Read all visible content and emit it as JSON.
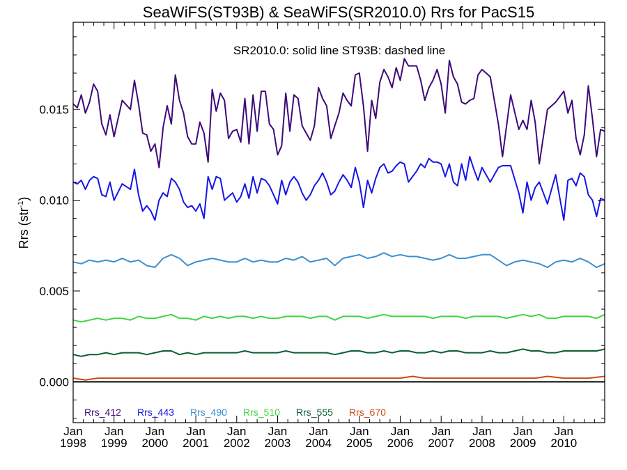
{
  "chart_data": {
    "type": "line",
    "title": "SeaWiFS(ST93B) & SeaWiFS(SR2010.0)  Rrs for PacS15",
    "annotation": "SR2010.0: solid line   ST93B: dashed line",
    "ylabel_main": "Rrs (str",
    "ylabel_sup": "-1",
    "ylabel_tail": ")",
    "xlim": [
      1998.0,
      2011.0
    ],
    "ylim": [
      -0.00225,
      0.0198
    ],
    "yticks": [
      {
        "value": 0.0,
        "label": "0.000"
      },
      {
        "value": 0.005,
        "label": "0.005"
      },
      {
        "value": 0.01,
        "label": "0.010"
      },
      {
        "value": 0.015,
        "label": "0.015"
      }
    ],
    "xticks": [
      {
        "value": 1998.0,
        "month": "Jan",
        "year": "1998"
      },
      {
        "value": 1999.0,
        "month": "Jan",
        "year": "1999"
      },
      {
        "value": 2000.0,
        "month": "Jan",
        "year": "2000"
      },
      {
        "value": 2001.0,
        "month": "Jan",
        "year": "2001"
      },
      {
        "value": 2002.0,
        "month": "Jan",
        "year": "2002"
      },
      {
        "value": 2003.0,
        "month": "Jan",
        "year": "2003"
      },
      {
        "value": 2004.0,
        "month": "Jan",
        "year": "2004"
      },
      {
        "value": 2005.0,
        "month": "Jan",
        "year": "2005"
      },
      {
        "value": 2006.0,
        "month": "Jan",
        "year": "2006"
      },
      {
        "value": 2007.0,
        "month": "Jan",
        "year": "2007"
      },
      {
        "value": 2008.0,
        "month": "Jan",
        "year": "2008"
      },
      {
        "value": 2009.0,
        "month": "Jan",
        "year": "2009"
      },
      {
        "value": 2010.0,
        "month": "Jan",
        "year": "2010"
      }
    ],
    "zero_line": 0.0,
    "legend": "bottom",
    "series": [
      {
        "name": "Rrs_412",
        "color": "#3d0a7a",
        "x": [
          1998.0,
          1998.1,
          1998.2,
          1998.3,
          1998.4,
          1998.5,
          1998.6,
          1998.7,
          1998.8,
          1998.9,
          1999.0,
          1999.2,
          1999.4,
          1999.5,
          1999.6,
          1999.7,
          1999.8,
          1999.9,
          2000.0,
          2000.1,
          2000.2,
          2000.3,
          2000.4,
          2000.5,
          2000.6,
          2000.7,
          2000.8,
          2000.9,
          2001.0,
          2001.1,
          2001.2,
          2001.3,
          2001.4,
          2001.5,
          2001.6,
          2001.7,
          2001.8,
          2001.9,
          2002.0,
          2002.1,
          2002.2,
          2002.3,
          2002.4,
          2002.5,
          2002.6,
          2002.7,
          2002.8,
          2002.9,
          2003.0,
          2003.1,
          2003.2,
          2003.3,
          2003.4,
          2003.5,
          2003.6,
          2003.7,
          2003.8,
          2003.9,
          2004.0,
          2004.1,
          2004.2,
          2004.3,
          2004.4,
          2004.5,
          2004.6,
          2004.7,
          2004.8,
          2004.9,
          2005.0,
          2005.1,
          2005.2,
          2005.3,
          2005.4,
          2005.5,
          2005.6,
          2005.7,
          2005.8,
          2005.9,
          2006.0,
          2006.1,
          2006.2,
          2006.4,
          2006.5,
          2006.6,
          2006.7,
          2006.8,
          2006.9,
          2007.0,
          2007.1,
          2007.2,
          2007.3,
          2007.4,
          2007.5,
          2007.6,
          2007.7,
          2007.8,
          2007.9,
          2008.0,
          2008.2,
          2008.4,
          2008.5,
          2008.7,
          2008.9,
          2009.0,
          2009.1,
          2009.2,
          2009.3,
          2009.4,
          2009.6,
          2009.8,
          2010.0,
          2010.1,
          2010.2,
          2010.3,
          2010.4,
          2010.5,
          2010.6,
          2010.7,
          2010.8,
          2010.9,
          2011.0
        ],
        "y": [
          0.0153,
          0.0151,
          0.0158,
          0.0148,
          0.0154,
          0.0164,
          0.016,
          0.0142,
          0.0136,
          0.0147,
          0.0135,
          0.0155,
          0.015,
          0.0166,
          0.0153,
          0.0137,
          0.0136,
          0.0127,
          0.0131,
          0.0118,
          0.014,
          0.0152,
          0.0142,
          0.0169,
          0.0155,
          0.0148,
          0.0135,
          0.0131,
          0.0131,
          0.0143,
          0.0137,
          0.0121,
          0.0161,
          0.0149,
          0.0159,
          0.0155,
          0.0134,
          0.0138,
          0.0139,
          0.0132,
          0.0156,
          0.0131,
          0.0158,
          0.0138,
          0.016,
          0.016,
          0.0142,
          0.0139,
          0.0125,
          0.013,
          0.0159,
          0.0138,
          0.0158,
          0.0156,
          0.0141,
          0.0137,
          0.0133,
          0.0141,
          0.0162,
          0.0156,
          0.0152,
          0.0134,
          0.0141,
          0.0148,
          0.0159,
          0.0155,
          0.0152,
          0.0169,
          0.017,
          0.0152,
          0.0127,
          0.0155,
          0.0145,
          0.0165,
          0.0172,
          0.0168,
          0.0162,
          0.0173,
          0.0166,
          0.0178,
          0.0174,
          0.0174,
          0.0166,
          0.0155,
          0.0162,
          0.0166,
          0.0172,
          0.0164,
          0.0148,
          0.0177,
          0.0168,
          0.0164,
          0.0154,
          0.0153,
          0.0155,
          0.0156,
          0.0169,
          0.0172,
          0.0168,
          0.0142,
          0.0124,
          0.0158,
          0.0139,
          0.0144,
          0.0139,
          0.0155,
          0.0143,
          0.012,
          0.015,
          0.0154,
          0.016,
          0.0148,
          0.0155,
          0.0134,
          0.0125,
          0.0136,
          0.0163,
          0.0145,
          0.0124,
          0.0139,
          0.0138
        ]
      },
      {
        "name": "Rrs_443",
        "color": "#1616e6",
        "x": [
          1998.0,
          1998.1,
          1998.2,
          1998.3,
          1998.4,
          1998.5,
          1998.6,
          1998.7,
          1998.8,
          1998.9,
          1999.0,
          1999.2,
          1999.4,
          1999.5,
          1999.6,
          1999.7,
          1999.8,
          1999.9,
          2000.0,
          2000.1,
          2000.2,
          2000.3,
          2000.4,
          2000.5,
          2000.6,
          2000.7,
          2000.8,
          2000.9,
          2001.0,
          2001.1,
          2001.2,
          2001.3,
          2001.4,
          2001.5,
          2001.6,
          2001.7,
          2001.8,
          2001.9,
          2002.0,
          2002.1,
          2002.2,
          2002.3,
          2002.4,
          2002.5,
          2002.6,
          2002.7,
          2002.8,
          2002.9,
          2003.0,
          2003.1,
          2003.2,
          2003.3,
          2003.4,
          2003.5,
          2003.6,
          2003.7,
          2003.8,
          2003.9,
          2004.0,
          2004.1,
          2004.2,
          2004.3,
          2004.4,
          2004.5,
          2004.6,
          2004.7,
          2004.8,
          2004.9,
          2005.0,
          2005.1,
          2005.2,
          2005.3,
          2005.4,
          2005.5,
          2005.6,
          2005.7,
          2005.8,
          2005.9,
          2006.0,
          2006.1,
          2006.2,
          2006.4,
          2006.5,
          2006.6,
          2006.7,
          2006.8,
          2006.9,
          2007.0,
          2007.1,
          2007.2,
          2007.3,
          2007.4,
          2007.5,
          2007.6,
          2007.7,
          2007.8,
          2007.9,
          2008.0,
          2008.2,
          2008.4,
          2008.5,
          2008.7,
          2008.9,
          2009.0,
          2009.1,
          2009.2,
          2009.3,
          2009.4,
          2009.6,
          2009.8,
          2010.0,
          2010.1,
          2010.2,
          2010.3,
          2010.4,
          2010.5,
          2010.6,
          2010.7,
          2010.8,
          2010.9,
          2011.0
        ],
        "y": [
          0.011,
          0.0109,
          0.0111,
          0.0106,
          0.0111,
          0.0113,
          0.0112,
          0.0103,
          0.0102,
          0.011,
          0.01,
          0.0109,
          0.0106,
          0.0117,
          0.0103,
          0.0094,
          0.0097,
          0.0094,
          0.0089,
          0.01,
          0.0104,
          0.0102,
          0.0112,
          0.011,
          0.0106,
          0.0099,
          0.0096,
          0.0097,
          0.0094,
          0.0098,
          0.009,
          0.0113,
          0.0106,
          0.0113,
          0.0112,
          0.01,
          0.0102,
          0.0104,
          0.0099,
          0.0102,
          0.0109,
          0.0101,
          0.0113,
          0.0104,
          0.0112,
          0.0111,
          0.0108,
          0.0103,
          0.0098,
          0.0111,
          0.0103,
          0.011,
          0.0113,
          0.011,
          0.0104,
          0.01,
          0.0103,
          0.0108,
          0.0111,
          0.0115,
          0.011,
          0.0103,
          0.0105,
          0.011,
          0.0114,
          0.0111,
          0.0107,
          0.0118,
          0.011,
          0.0096,
          0.0111,
          0.0104,
          0.0112,
          0.0118,
          0.012,
          0.0115,
          0.0116,
          0.0119,
          0.0121,
          0.012,
          0.011,
          0.0116,
          0.012,
          0.0118,
          0.0123,
          0.0121,
          0.0121,
          0.012,
          0.0113,
          0.012,
          0.011,
          0.0108,
          0.012,
          0.0111,
          0.0124,
          0.0117,
          0.0111,
          0.0118,
          0.011,
          0.0118,
          0.0119,
          0.0119,
          0.0104,
          0.0093,
          0.011,
          0.01,
          0.0107,
          0.011,
          0.0098,
          0.0114,
          0.0089,
          0.0111,
          0.0112,
          0.0108,
          0.0115,
          0.0113,
          0.0103,
          0.01,
          0.0091,
          0.0101,
          0.01
        ]
      },
      {
        "name": "Rrs_490",
        "color": "#3a8fd0",
        "x": [
          1998.0,
          1998.2,
          1998.4,
          1998.6,
          1998.8,
          1999.0,
          1999.2,
          1999.4,
          1999.6,
          1999.8,
          2000.0,
          2000.2,
          2000.4,
          2000.6,
          2000.8,
          2001.0,
          2001.2,
          2001.4,
          2001.6,
          2001.8,
          2002.0,
          2002.2,
          2002.4,
          2002.6,
          2002.8,
          2003.0,
          2003.2,
          2003.4,
          2003.6,
          2003.8,
          2004.0,
          2004.2,
          2004.4,
          2004.6,
          2004.8,
          2005.0,
          2005.2,
          2005.4,
          2005.6,
          2005.8,
          2006.0,
          2006.2,
          2006.4,
          2006.6,
          2006.8,
          2007.0,
          2007.2,
          2007.4,
          2007.6,
          2007.8,
          2008.0,
          2008.2,
          2008.4,
          2008.6,
          2008.8,
          2009.0,
          2009.2,
          2009.4,
          2009.6,
          2009.8,
          2010.0,
          2010.2,
          2010.4,
          2010.6,
          2010.8,
          2011.0
        ],
        "y": [
          0.0066,
          0.0065,
          0.0067,
          0.0066,
          0.0067,
          0.0066,
          0.0068,
          0.0066,
          0.0067,
          0.0064,
          0.0063,
          0.0068,
          0.007,
          0.0068,
          0.0064,
          0.0066,
          0.0067,
          0.0068,
          0.0067,
          0.0066,
          0.0066,
          0.0068,
          0.0066,
          0.0067,
          0.0066,
          0.0066,
          0.0068,
          0.0067,
          0.0069,
          0.0066,
          0.0067,
          0.0068,
          0.0064,
          0.0068,
          0.0069,
          0.007,
          0.0068,
          0.0069,
          0.0071,
          0.0069,
          0.007,
          0.0069,
          0.0069,
          0.0068,
          0.0067,
          0.0068,
          0.007,
          0.0068,
          0.0068,
          0.0069,
          0.007,
          0.007,
          0.0067,
          0.0064,
          0.0066,
          0.0067,
          0.0066,
          0.0065,
          0.0063,
          0.0066,
          0.0067,
          0.0066,
          0.0068,
          0.0066,
          0.0063,
          0.0065
        ]
      },
      {
        "name": "Rrs_510",
        "color": "#3ed63e",
        "x": [
          1998.0,
          1998.2,
          1998.4,
          1998.6,
          1998.8,
          1999.0,
          1999.2,
          1999.4,
          1999.6,
          1999.8,
          2000.0,
          2000.2,
          2000.4,
          2000.6,
          2000.8,
          2001.0,
          2001.2,
          2001.4,
          2001.6,
          2001.8,
          2002.0,
          2002.2,
          2002.4,
          2002.6,
          2002.8,
          2003.0,
          2003.2,
          2003.4,
          2003.6,
          2003.8,
          2004.0,
          2004.2,
          2004.4,
          2004.6,
          2004.8,
          2005.0,
          2005.2,
          2005.4,
          2005.6,
          2005.8,
          2006.0,
          2006.2,
          2006.4,
          2006.6,
          2006.8,
          2007.0,
          2007.2,
          2007.4,
          2007.6,
          2007.8,
          2008.0,
          2008.2,
          2008.4,
          2008.6,
          2008.8,
          2009.0,
          2009.2,
          2009.4,
          2009.6,
          2009.8,
          2010.0,
          2010.2,
          2010.4,
          2010.6,
          2010.8,
          2011.0
        ],
        "y": [
          0.0034,
          0.0033,
          0.0034,
          0.0035,
          0.0034,
          0.0035,
          0.0035,
          0.0034,
          0.0036,
          0.0035,
          0.0035,
          0.0036,
          0.0037,
          0.0035,
          0.0035,
          0.0034,
          0.0036,
          0.0035,
          0.0036,
          0.0035,
          0.0036,
          0.0036,
          0.0035,
          0.0036,
          0.0035,
          0.0035,
          0.0036,
          0.0036,
          0.0036,
          0.0035,
          0.0036,
          0.0036,
          0.0034,
          0.0036,
          0.0036,
          0.0036,
          0.0035,
          0.0036,
          0.0037,
          0.0036,
          0.0036,
          0.0036,
          0.0036,
          0.0036,
          0.0035,
          0.0036,
          0.0036,
          0.0036,
          0.0035,
          0.0036,
          0.0036,
          0.0036,
          0.0036,
          0.0035,
          0.0036,
          0.0037,
          0.0036,
          0.0037,
          0.0035,
          0.0035,
          0.0036,
          0.0036,
          0.0036,
          0.0036,
          0.0035,
          0.0037
        ]
      },
      {
        "name": "Rrs_555",
        "color": "#0b5f32",
        "x": [
          1998.0,
          1998.2,
          1998.4,
          1998.6,
          1998.8,
          1999.0,
          1999.2,
          1999.4,
          1999.6,
          1999.8,
          2000.0,
          2000.2,
          2000.4,
          2000.6,
          2000.8,
          2001.0,
          2001.2,
          2001.4,
          2001.6,
          2001.8,
          2002.0,
          2002.2,
          2002.4,
          2002.6,
          2002.8,
          2003.0,
          2003.2,
          2003.4,
          2003.6,
          2003.8,
          2004.0,
          2004.2,
          2004.4,
          2004.6,
          2004.8,
          2005.0,
          2005.2,
          2005.4,
          2005.6,
          2005.8,
          2006.0,
          2006.2,
          2006.4,
          2006.6,
          2006.8,
          2007.0,
          2007.2,
          2007.4,
          2007.6,
          2007.8,
          2008.0,
          2008.2,
          2008.4,
          2008.6,
          2008.8,
          2009.0,
          2009.2,
          2009.4,
          2009.6,
          2009.8,
          2010.0,
          2010.2,
          2010.4,
          2010.6,
          2010.8,
          2011.0
        ],
        "y": [
          0.0015,
          0.0014,
          0.0015,
          0.0015,
          0.0016,
          0.0015,
          0.0016,
          0.0016,
          0.0016,
          0.0015,
          0.0016,
          0.0017,
          0.0017,
          0.0015,
          0.0016,
          0.0015,
          0.0016,
          0.0016,
          0.0016,
          0.0016,
          0.0016,
          0.0017,
          0.0016,
          0.0016,
          0.0016,
          0.0016,
          0.0017,
          0.0016,
          0.0016,
          0.0016,
          0.0016,
          0.0016,
          0.0015,
          0.0016,
          0.0017,
          0.0017,
          0.0016,
          0.0016,
          0.0017,
          0.0016,
          0.0017,
          0.0017,
          0.0016,
          0.0016,
          0.0017,
          0.0016,
          0.0017,
          0.0017,
          0.0016,
          0.0016,
          0.0016,
          0.0017,
          0.0016,
          0.0016,
          0.0017,
          0.0018,
          0.0017,
          0.0017,
          0.0016,
          0.0016,
          0.0017,
          0.0017,
          0.0017,
          0.0017,
          0.0017,
          0.0018
        ]
      },
      {
        "name": "Rrs_670",
        "color": "#cc4a10",
        "x": [
          1998.0,
          1998.3,
          1998.6,
          1999.0,
          1999.3,
          1999.6,
          2000.0,
          2000.3,
          2000.6,
          2001.0,
          2001.3,
          2001.6,
          2002.0,
          2002.3,
          2002.6,
          2003.0,
          2003.3,
          2003.6,
          2004.0,
          2004.3,
          2004.6,
          2005.0,
          2005.3,
          2005.6,
          2006.0,
          2006.3,
          2006.6,
          2007.0,
          2007.3,
          2007.6,
          2008.0,
          2008.3,
          2008.6,
          2009.0,
          2009.3,
          2009.6,
          2010.0,
          2010.3,
          2010.6,
          2011.0
        ],
        "y": [
          0.0002,
          0.0001,
          0.0002,
          0.0002,
          0.0002,
          0.0002,
          0.0002,
          0.0002,
          0.0002,
          0.0002,
          0.0002,
          0.0002,
          0.0002,
          0.0002,
          0.0002,
          0.0002,
          0.0002,
          0.0002,
          0.0002,
          0.0002,
          0.0002,
          0.0002,
          0.0002,
          0.0002,
          0.0002,
          0.0003,
          0.0002,
          0.0002,
          0.0002,
          0.0002,
          0.0002,
          0.0002,
          0.0002,
          0.0002,
          0.0002,
          0.0003,
          0.0002,
          0.0002,
          0.0002,
          0.0003
        ]
      }
    ]
  }
}
